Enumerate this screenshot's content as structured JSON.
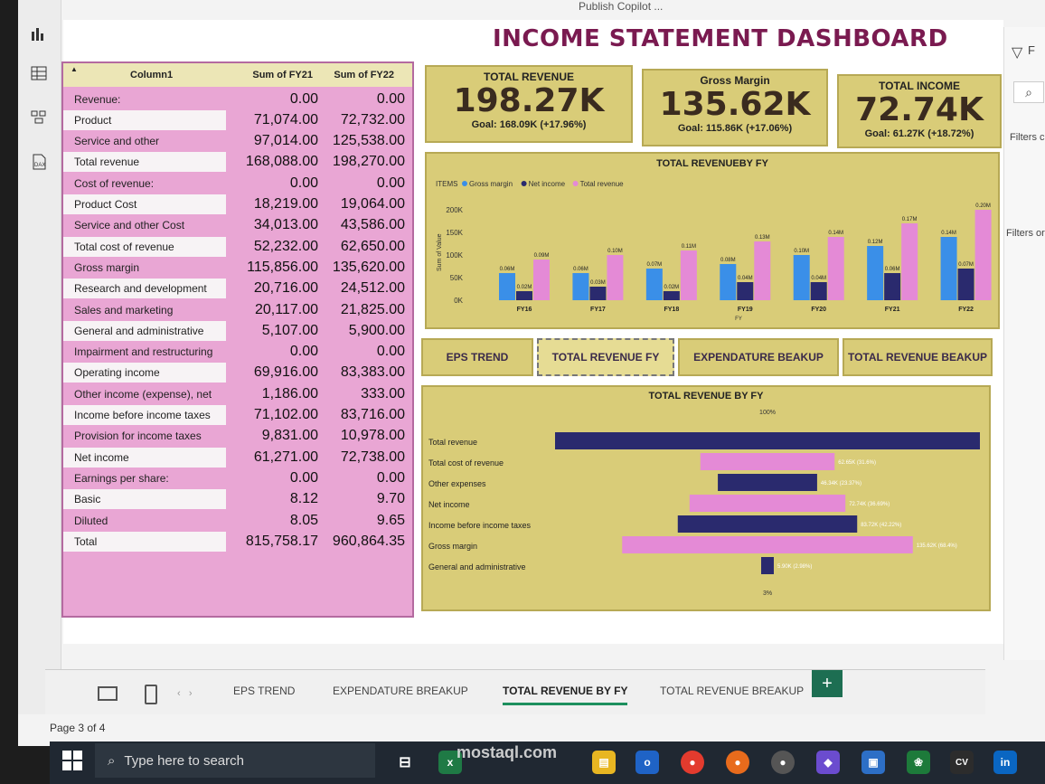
{
  "app": {
    "top_strip": "Publish   Copilot   ...",
    "page_title": "INCOME STATEMENT DASHBOARD",
    "right_pane": {
      "filter_label": "F",
      "filters_1": "Filters c",
      "filters_2": "Filters or"
    }
  },
  "table": {
    "headers": [
      "Column1",
      "Sum of FY21",
      "Sum of FY22"
    ],
    "rows": [
      {
        "label": "Revenue:",
        "fy21": "0.00",
        "fy22": "0.00"
      },
      {
        "label": "Product",
        "fy21": "71,074.00",
        "fy22": "72,732.00"
      },
      {
        "label": "Service and other",
        "fy21": "97,014.00",
        "fy22": "125,538.00"
      },
      {
        "label": "Total revenue",
        "fy21": "168,088.00",
        "fy22": "198,270.00"
      },
      {
        "label": "Cost of revenue:",
        "fy21": "0.00",
        "fy22": "0.00"
      },
      {
        "label": "Product Cost",
        "fy21": "18,219.00",
        "fy22": "19,064.00"
      },
      {
        "label": "Service and other Cost",
        "fy21": "34,013.00",
        "fy22": "43,586.00"
      },
      {
        "label": "Total cost of revenue",
        "fy21": "52,232.00",
        "fy22": "62,650.00"
      },
      {
        "label": "Gross margin",
        "fy21": "115,856.00",
        "fy22": "135,620.00"
      },
      {
        "label": "Research and development",
        "fy21": "20,716.00",
        "fy22": "24,512.00"
      },
      {
        "label": "Sales and marketing",
        "fy21": "20,117.00",
        "fy22": "21,825.00"
      },
      {
        "label": "General and administrative",
        "fy21": "5,107.00",
        "fy22": "5,900.00"
      },
      {
        "label": "Impairment and restructuring",
        "fy21": "0.00",
        "fy22": "0.00"
      },
      {
        "label": "Operating income",
        "fy21": "69,916.00",
        "fy22": "83,383.00"
      },
      {
        "label": "Other income (expense), net",
        "fy21": "1,186.00",
        "fy22": "333.00"
      },
      {
        "label": "Income before income taxes",
        "fy21": "71,102.00",
        "fy22": "83,716.00"
      },
      {
        "label": "Provision for income taxes",
        "fy21": "9,831.00",
        "fy22": "10,978.00"
      },
      {
        "label": "Net income",
        "fy21": "61,271.00",
        "fy22": "72,738.00"
      },
      {
        "label": "Earnings per share:",
        "fy21": "0.00",
        "fy22": "0.00"
      },
      {
        "label": "Basic",
        "fy21": "8.12",
        "fy22": "9.70"
      },
      {
        "label": "Diluted",
        "fy21": "8.05",
        "fy22": "9.65"
      },
      {
        "label": "Total",
        "fy21": "815,758.17",
        "fy22": "960,864.35"
      }
    ]
  },
  "kpis": [
    {
      "title": "TOTAL REVENUE",
      "value": "198.27K",
      "goal": "Goal: 168.09K (+17.96%)"
    },
    {
      "title": "Gross Margin",
      "value": "135.62K",
      "goal": "Goal: 115.86K (+17.06%)"
    },
    {
      "title": "TOTAL INCOME",
      "value": "72.74K",
      "goal": "Goal: 61.27K (+18.72%)"
    }
  ],
  "nav_buttons": [
    "EPS TREND",
    "TOTAL REVENUE FY",
    "EXPENDATURE BEAKUP",
    "TOTAL REVENUE BEAKUP"
  ],
  "colors": {
    "gross": "#3a8fe8",
    "net": "#2a2a6e",
    "total": "#e48ad6",
    "panel": "#d9cc78",
    "table_pink": "#e9a6d4"
  },
  "chart_data": [
    {
      "type": "bar",
      "title": "TOTAL REVENUEBY FY",
      "legend_title": "ITEMS",
      "xlabel": "FY",
      "ylabel": "Sum of Value",
      "ylim": [
        0,
        200000
      ],
      "yticks": [
        "0K",
        "50K",
        "100K",
        "150K",
        "200K"
      ],
      "categories": [
        "FY16",
        "FY17",
        "FY18",
        "FY19",
        "FY20",
        "FY21",
        "FY22"
      ],
      "series": [
        {
          "name": "Gross margin",
          "values": [
            60000,
            60000,
            70000,
            80000,
            100000,
            120000,
            140000
          ],
          "labels": [
            "0.06M",
            "0.06M",
            "0.07M",
            "0.08M",
            "0.10M",
            "0.12M",
            "0.14M"
          ]
        },
        {
          "name": "Net income",
          "values": [
            20000,
            30000,
            20000,
            40000,
            40000,
            60000,
            70000
          ],
          "labels": [
            "0.02M",
            "0.03M",
            "0.02M",
            "0.04M",
            "0.04M",
            "0.06M",
            "0.07M"
          ]
        },
        {
          "name": "Total revenue",
          "values": [
            90000,
            100000,
            110000,
            130000,
            140000,
            170000,
            200000
          ],
          "labels": [
            "0.09M",
            "0.10M",
            "0.11M",
            "0.13M",
            "0.14M",
            "0.17M",
            "0.20M"
          ]
        }
      ],
      "legend_position": "top-left"
    },
    {
      "type": "bar",
      "title": "TOTAL REVENUE BY FY",
      "top_label": "100%",
      "bottom_label": "3%",
      "categories": [
        "Total revenue",
        "Total cost of revenue",
        "Other expenses",
        "Net income",
        "Income before income taxes",
        "Gross margin",
        "General and administrative"
      ],
      "values": [
        198270,
        62650,
        46340,
        72740,
        83720,
        135620,
        5900
      ],
      "value_labels": [
        "",
        "62.65K (31.6%)",
        "46.34K (23.37%)",
        "72.74K (36.69%)",
        "83.72K (42.22%)",
        "135.62K (68.4%)",
        "5.90K (2.98%)"
      ],
      "colors": [
        "#2a2a6e",
        "#e48ad6",
        "#2a2a6e",
        "#e48ad6",
        "#2a2a6e",
        "#e48ad6",
        "#2a2a6e"
      ]
    }
  ],
  "tabs": {
    "items": [
      "EPS TREND",
      "EXPENDATURE BREAKUP",
      "TOTAL REVENUE BY FY",
      "TOTAL REVENUE BREAKUP"
    ],
    "active": "TOTAL REVENUE BY FY",
    "add": "+"
  },
  "page_info": "Page 3 of 4",
  "taskbar": {
    "search_placeholder": "Type here to search",
    "watermark": "mostaql.com"
  }
}
